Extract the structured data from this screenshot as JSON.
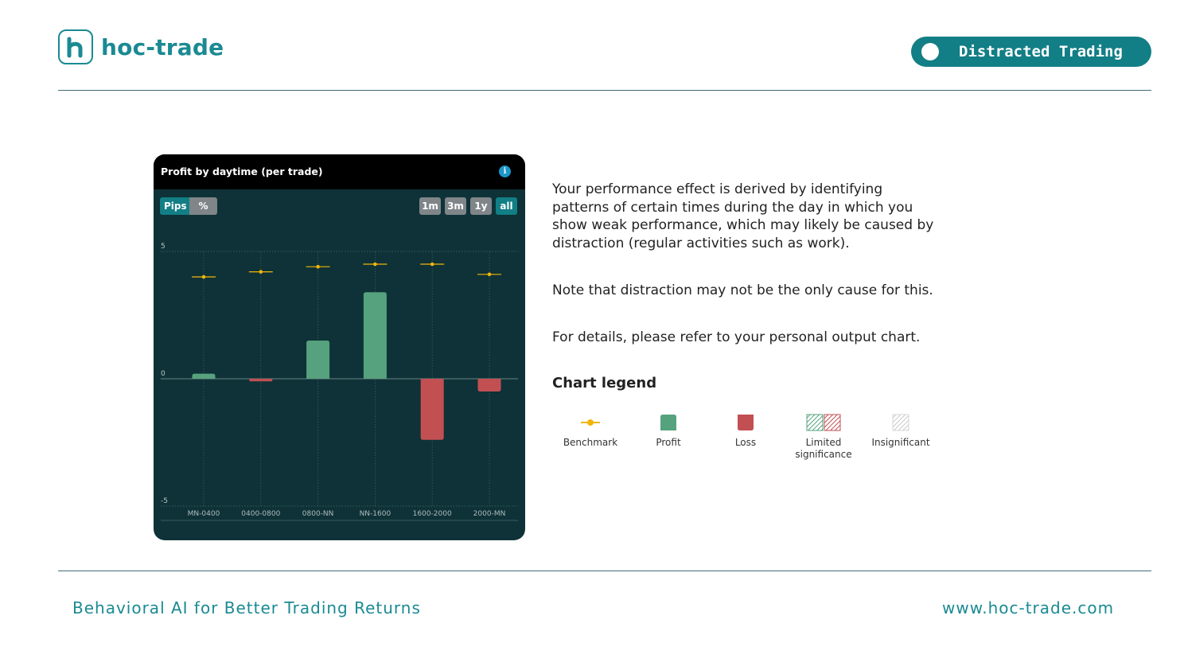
{
  "brand": {
    "name": "hoc-trade",
    "color": "#1a8a93"
  },
  "topic": "Distracted Trading",
  "card": {
    "title": "Profit by daytime (per trade)",
    "units": [
      "Pips",
      "%"
    ],
    "active_unit": "Pips",
    "ranges": [
      "1m",
      "3m",
      "1y",
      "all"
    ],
    "active_range": "all"
  },
  "chart_data": {
    "type": "bar",
    "title": "Profit by daytime (per trade)",
    "categories": [
      "MN-0400",
      "0400-0800",
      "0800-NN",
      "NN-1600",
      "1600-2000",
      "2000-MN"
    ],
    "values": [
      0.2,
      -0.1,
      1.5,
      3.4,
      -2.4,
      -0.5
    ],
    "benchmark": [
      4.0,
      4.2,
      4.4,
      4.5,
      4.5,
      4.1
    ],
    "yticks": [
      "5",
      "0",
      "-5"
    ],
    "ylim": [
      -5,
      5
    ],
    "grid": true,
    "colors": {
      "profit": "#56a27e",
      "loss": "#c25053",
      "benchmark": "#f1b50a"
    }
  },
  "description": {
    "p1": "Your performance effect is derived by identifying patterns of certain times during the day in which you show weak performance, which may likely be caused by distraction (regular activities such as work).",
    "p2": "Note that distraction may not be the only cause for this.",
    "p3": "For details, please refer to your personal output chart."
  },
  "legend": {
    "title": "Chart legend",
    "items": [
      "Benchmark",
      "Profit",
      "Loss",
      "Limited significance",
      "Insignificant"
    ]
  },
  "footer": {
    "tagline": "Behavioral AI for Better Trading Returns",
    "url": "www.hoc-trade.com"
  }
}
